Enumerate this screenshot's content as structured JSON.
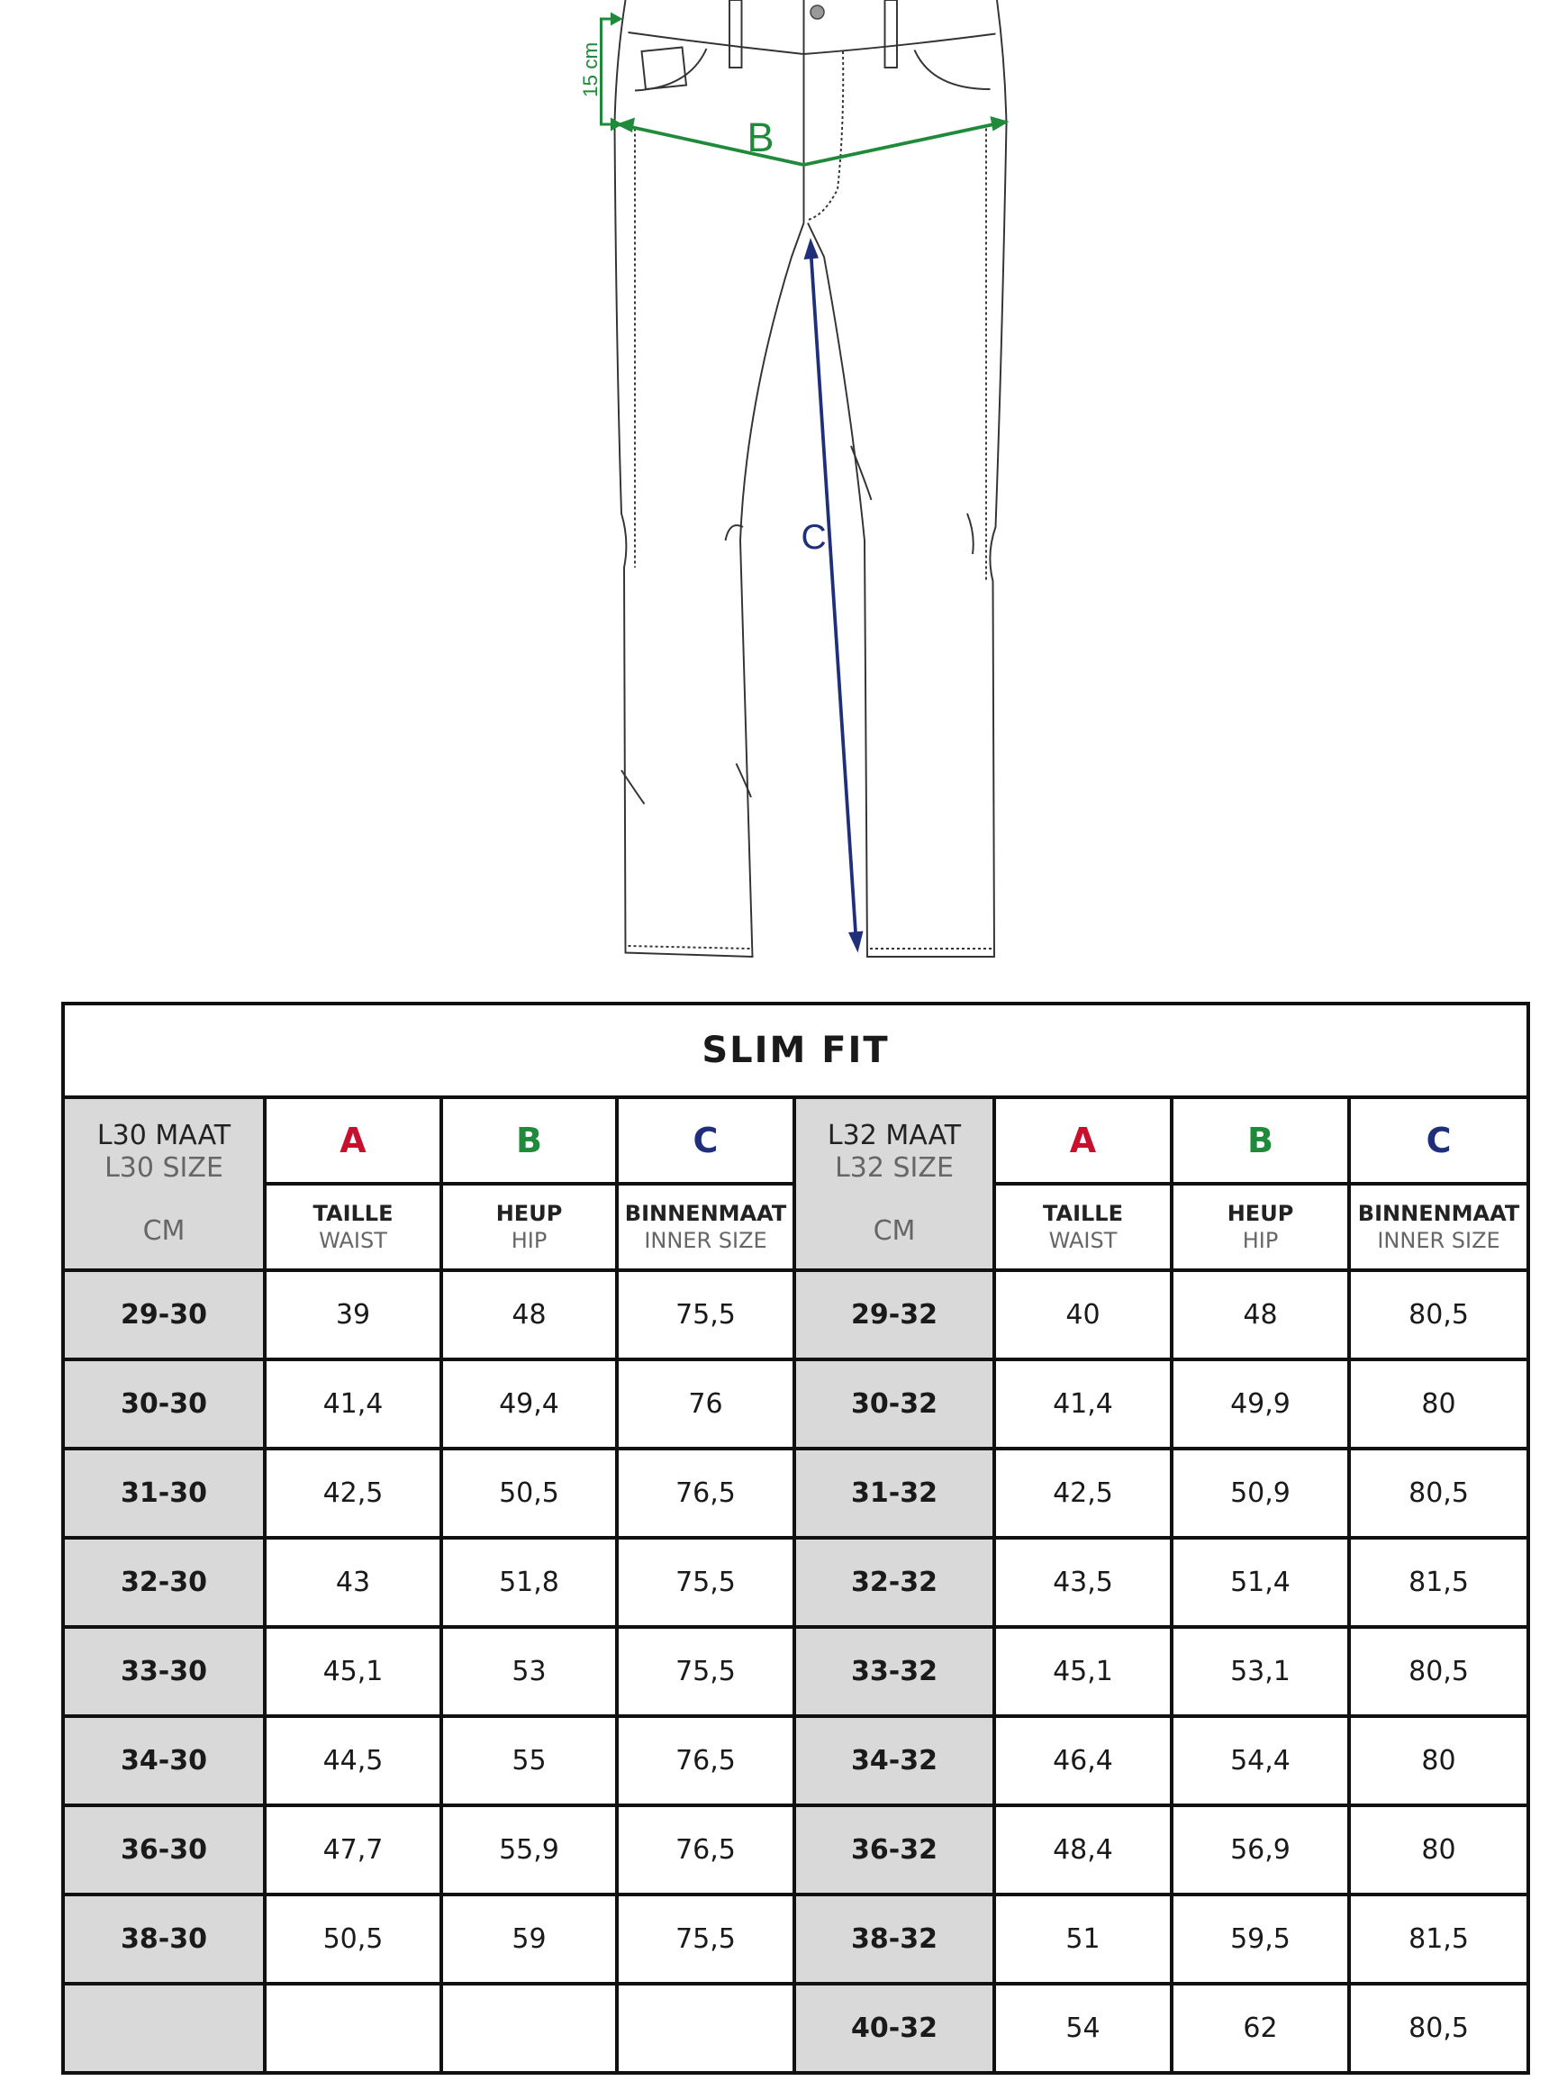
{
  "diagram": {
    "label_15cm": "15 cm",
    "label_b": "B",
    "label_c": "C",
    "colors": {
      "a": "#c8102e",
      "b": "#1e8a3a",
      "c": "#1f2f7a"
    }
  },
  "table": {
    "title": "SLIM FIT",
    "groups": [
      {
        "size_nl": "L30 MAAT",
        "size_en": "L30 SIZE",
        "unit": "CM"
      },
      {
        "size_nl": "L32 MAAT",
        "size_en": "L32 SIZE",
        "unit": "CM"
      }
    ],
    "columns": [
      {
        "letter": "A",
        "nl": "TAILLE",
        "en": "WAIST"
      },
      {
        "letter": "B",
        "nl": "HEUP",
        "en": "HIP"
      },
      {
        "letter": "C",
        "nl": "BINNENMAAT",
        "en": "INNER SIZE"
      }
    ],
    "rows": [
      [
        [
          "29-30",
          "39",
          "48",
          "75,5"
        ],
        [
          "29-32",
          "40",
          "48",
          "80,5"
        ]
      ],
      [
        [
          "30-30",
          "41,4",
          "49,4",
          "76"
        ],
        [
          "30-32",
          "41,4",
          "49,9",
          "80"
        ]
      ],
      [
        [
          "31-30",
          "42,5",
          "50,5",
          "76,5"
        ],
        [
          "31-32",
          "42,5",
          "50,9",
          "80,5"
        ]
      ],
      [
        [
          "32-30",
          "43",
          "51,8",
          "75,5"
        ],
        [
          "32-32",
          "43,5",
          "51,4",
          "81,5"
        ]
      ],
      [
        [
          "33-30",
          "45,1",
          "53",
          "75,5"
        ],
        [
          "33-32",
          "45,1",
          "53,1",
          "80,5"
        ]
      ],
      [
        [
          "34-30",
          "44,5",
          "55",
          "76,5"
        ],
        [
          "34-32",
          "46,4",
          "54,4",
          "80"
        ]
      ],
      [
        [
          "36-30",
          "47,7",
          "55,9",
          "76,5"
        ],
        [
          "36-32",
          "48,4",
          "56,9",
          "80"
        ]
      ],
      [
        [
          "38-30",
          "50,5",
          "59",
          "75,5"
        ],
        [
          "38-32",
          "51",
          "59,5",
          "81,5"
        ]
      ],
      [
        [
          "",
          "",
          "",
          ""
        ],
        [
          "40-32",
          "54",
          "62",
          "80,5"
        ]
      ]
    ]
  }
}
